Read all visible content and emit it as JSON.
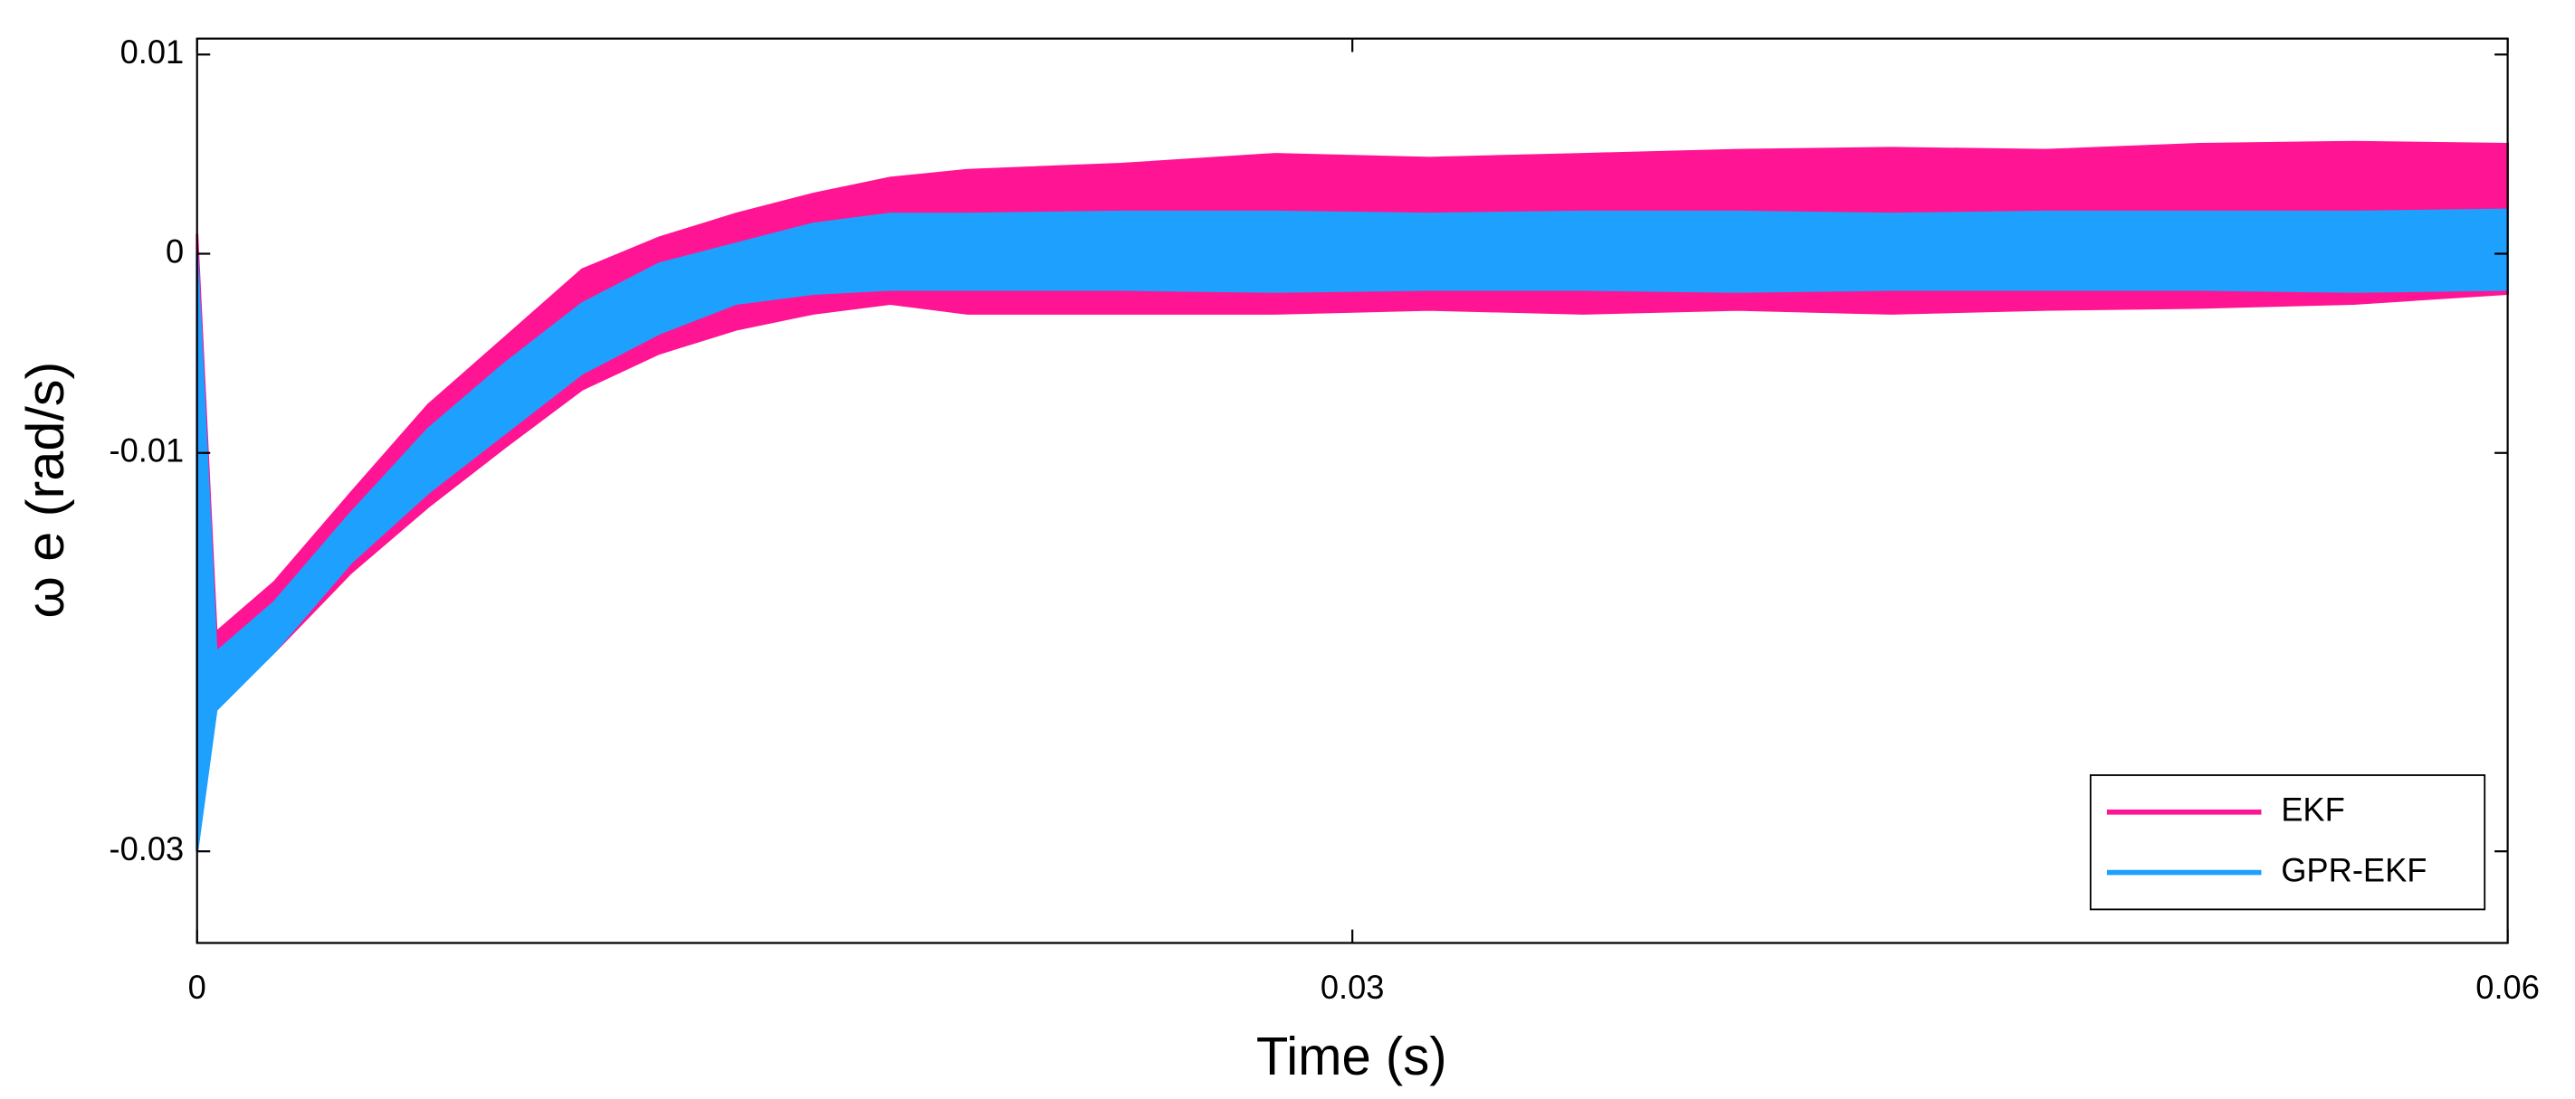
{
  "chart_data": {
    "type": "band",
    "xlabel": "Time (s)",
    "ylabel": "ω e (rad/s)",
    "x": [
      0,
      0.0005,
      0.002,
      0.004,
      0.006,
      0.008,
      0.01,
      0.012,
      0.014,
      0.016,
      0.018,
      0.02,
      0.024,
      0.028,
      0.032,
      0.036,
      0.04,
      0.044,
      0.048,
      0.052,
      0.056,
      0.06
    ],
    "series": [
      {
        "name": "EKF",
        "color": "#ff1493",
        "high": [
          0.001,
          -0.019,
          -0.0165,
          -0.012,
          -0.0076,
          -0.0042,
          -0.0008,
          0.0008,
          0.002,
          0.003,
          0.0038,
          0.0042,
          0.0045,
          0.005,
          0.0048,
          0.005,
          0.0052,
          0.0053,
          0.0052,
          0.0055,
          0.0056,
          0.0055
        ],
        "low": [
          -0.03,
          -0.022,
          -0.02,
          -0.016,
          -0.0127,
          -0.0097,
          -0.0068,
          -0.005,
          -0.0038,
          -0.003,
          -0.0025,
          -0.003,
          -0.003,
          -0.003,
          -0.0028,
          -0.003,
          -0.0028,
          -0.003,
          -0.0028,
          -0.0027,
          -0.0025,
          -0.002
        ]
      },
      {
        "name": "GPR-EKF",
        "color": "#1ea0ff",
        "high": [
          0,
          -0.02,
          -0.0175,
          -0.013,
          -0.0088,
          -0.0055,
          -0.0025,
          -0.0005,
          0.0005,
          0.0015,
          0.002,
          0.002,
          0.0021,
          0.0021,
          0.002,
          0.0021,
          0.0021,
          0.002,
          0.0021,
          0.0021,
          0.0021,
          0.0022
        ],
        "low": [
          -0.03,
          -0.0229,
          -0.02,
          -0.0155,
          -0.012,
          -0.009,
          -0.006,
          -0.004,
          -0.0025,
          -0.002,
          -0.0018,
          -0.0018,
          -0.0018,
          -0.0019,
          -0.0018,
          -0.0018,
          -0.0019,
          -0.0018,
          -0.0018,
          -0.0018,
          -0.0019,
          -0.0018
        ]
      }
    ],
    "xlim": [
      0,
      0.06
    ],
    "xticks": [
      0,
      0.03,
      0.06
    ],
    "ylim": [
      -0.0346,
      0.0108
    ],
    "yticks": [
      0.01,
      0,
      -0.01,
      -0.03
    ],
    "legend": "lower right"
  }
}
